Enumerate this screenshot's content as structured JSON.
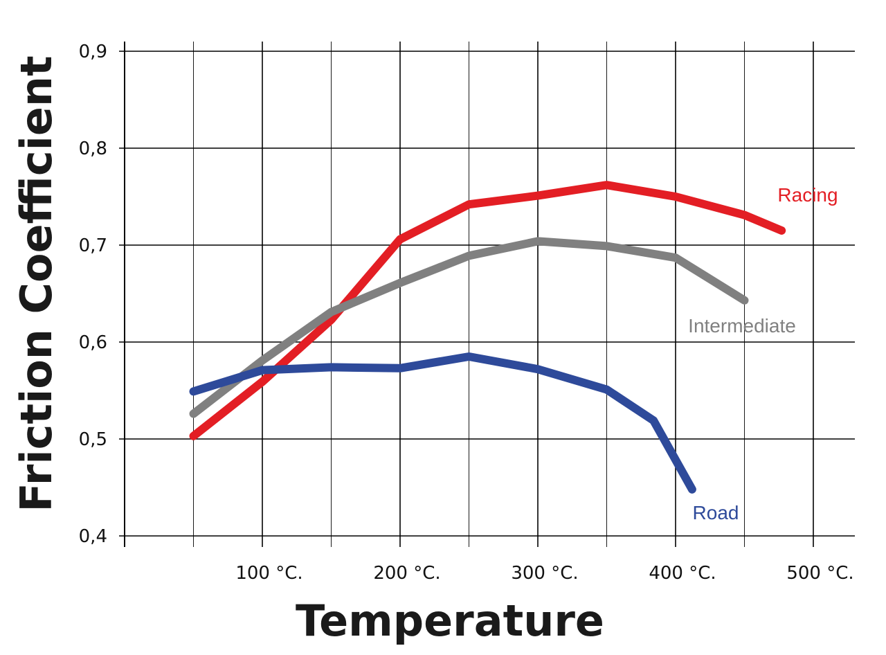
{
  "chart_data": {
    "type": "line",
    "xlabel": "Temperature",
    "ylabel": "Friction Coefficient",
    "xlim": [
      0,
      530
    ],
    "ylim": [
      0.4,
      0.9
    ],
    "grid": true,
    "x_ticks": [
      {
        "value": 100,
        "label": "100 °C."
      },
      {
        "value": 200,
        "label": "200 °C."
      },
      {
        "value": 300,
        "label": "300 °C."
      },
      {
        "value": 400,
        "label": "400 °C."
      },
      {
        "value": 500,
        "label": "500 °C."
      }
    ],
    "y_ticks": [
      {
        "value": 0.4,
        "label": "0,4"
      },
      {
        "value": 0.5,
        "label": "0,5"
      },
      {
        "value": 0.6,
        "label": "0,6"
      },
      {
        "value": 0.7,
        "label": "0,7"
      },
      {
        "value": 0.8,
        "label": "0,8"
      },
      {
        "value": 0.9,
        "label": "0,9"
      }
    ],
    "series": [
      {
        "name": "Racing",
        "color": "#e31e24",
        "x": [
          50,
          100,
          150,
          200,
          250,
          300,
          350,
          400,
          450,
          477
        ],
        "y": [
          0.503,
          0.559,
          0.623,
          0.706,
          0.742,
          0.751,
          0.762,
          0.75,
          0.731,
          0.715
        ]
      },
      {
        "name": "Intermediate",
        "color": "#808080",
        "x": [
          50,
          100,
          150,
          200,
          250,
          300,
          350,
          400,
          450
        ],
        "y": [
          0.526,
          0.581,
          0.631,
          0.661,
          0.689,
          0.704,
          0.699,
          0.687,
          0.643
        ]
      },
      {
        "name": "Road",
        "color": "#2e4a9a",
        "x": [
          50,
          100,
          150,
          200,
          250,
          300,
          350,
          384,
          412
        ],
        "y": [
          0.549,
          0.571,
          0.574,
          0.573,
          0.585,
          0.572,
          0.551,
          0.519,
          0.448
        ]
      }
    ]
  }
}
